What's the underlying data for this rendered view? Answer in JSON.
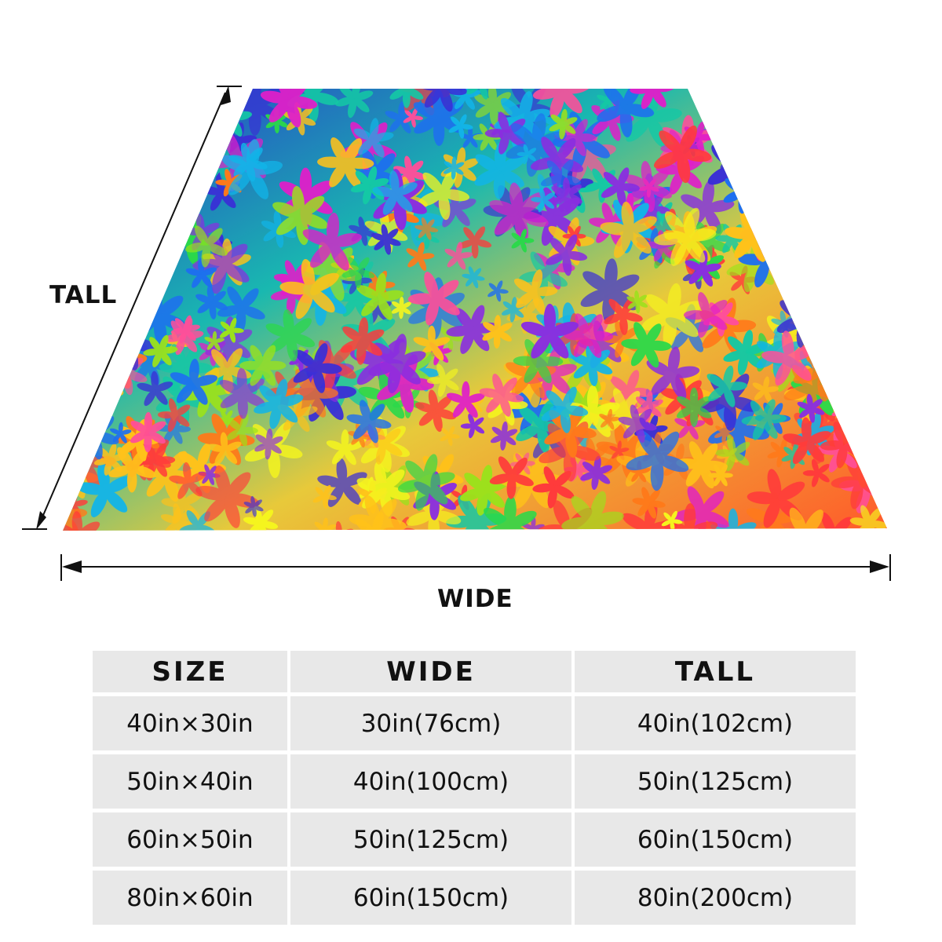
{
  "dimensions": {
    "tall_label": "TALL",
    "wide_label": "WIDE"
  },
  "size_table": {
    "headers": [
      "SIZE",
      "WIDE",
      "TALL"
    ],
    "rows": [
      [
        "40in×30in",
        "30in(76cm)",
        "40in(102cm)"
      ],
      [
        "50in×40in",
        "40in(100cm)",
        "50in(125cm)"
      ],
      [
        "60in×50in",
        "50in(125cm)",
        "60in(150cm)"
      ],
      [
        "80in×60in",
        "60in(150cm)",
        "80in(200cm)"
      ]
    ]
  },
  "pattern": {
    "colors": [
      "#ff3b3b",
      "#ff7a1a",
      "#ffc21a",
      "#f5f51e",
      "#9be21c",
      "#2bd94a",
      "#14c9a5",
      "#12b5e8",
      "#1e6ff0",
      "#3a2fd6",
      "#8a2ee0",
      "#e01fc9",
      "#ff4f9a"
    ]
  }
}
